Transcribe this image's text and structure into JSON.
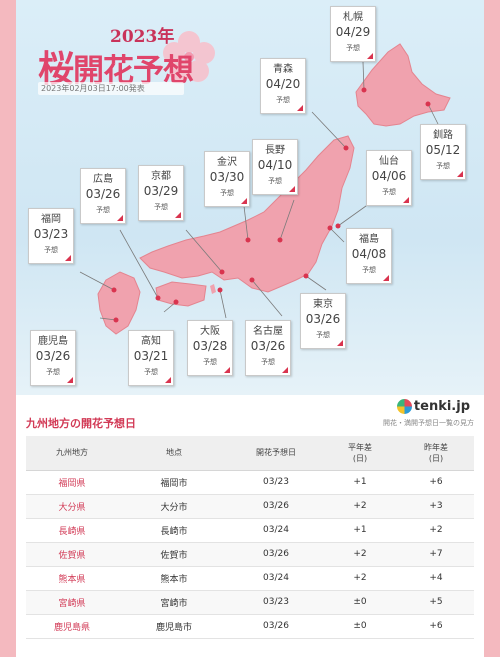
{
  "header": {
    "year": "2023年",
    "title_sakura": "桜",
    "title_rest": "開花予想",
    "issued": "2023年02月03日17:00発表"
  },
  "forecast_label": "予想",
  "callouts": [
    {
      "city": "札幌",
      "date": "04/29"
    },
    {
      "city": "青森",
      "date": "04/20"
    },
    {
      "city": "釧路",
      "date": "05/12"
    },
    {
      "city": "長野",
      "date": "04/10"
    },
    {
      "city": "仙台",
      "date": "04/06"
    },
    {
      "city": "金沢",
      "date": "03/30"
    },
    {
      "city": "京都",
      "date": "03/29"
    },
    {
      "city": "広島",
      "date": "03/26"
    },
    {
      "city": "福岡",
      "date": "03/23"
    },
    {
      "city": "福島",
      "date": "04/08"
    },
    {
      "city": "東京",
      "date": "03/26"
    },
    {
      "city": "鹿児島",
      "date": "03/26"
    },
    {
      "city": "高知",
      "date": "03/21"
    },
    {
      "city": "大阪",
      "date": "03/28"
    },
    {
      "city": "名古屋",
      "date": "03/26"
    }
  ],
  "logo_text": "tenki.jp",
  "section": {
    "title": "九州地方の開花予想日",
    "link": "開花・満開予想日一覧の見方"
  },
  "table": {
    "headers": [
      "九州地方",
      "地点",
      "開花予想日",
      "平年差\n(日)",
      "昨年差\n(日)"
    ],
    "rows": [
      [
        "福岡県",
        "福岡市",
        "03/23",
        "+1",
        "+6"
      ],
      [
        "大分県",
        "大分市",
        "03/26",
        "+2",
        "+3"
      ],
      [
        "長崎県",
        "長崎市",
        "03/24",
        "+1",
        "+2"
      ],
      [
        "佐賀県",
        "佐賀市",
        "03/26",
        "+2",
        "+7"
      ],
      [
        "熊本県",
        "熊本市",
        "03/24",
        "+2",
        "+4"
      ],
      [
        "宮崎県",
        "宮崎市",
        "03/23",
        "±0",
        "+5"
      ],
      [
        "鹿児島県",
        "鹿児島市",
        "03/26",
        "±0",
        "+6"
      ]
    ]
  },
  "colors": {
    "land": "#f0a2ae",
    "accent": "#d23a56",
    "border": "#f4b9bf"
  }
}
